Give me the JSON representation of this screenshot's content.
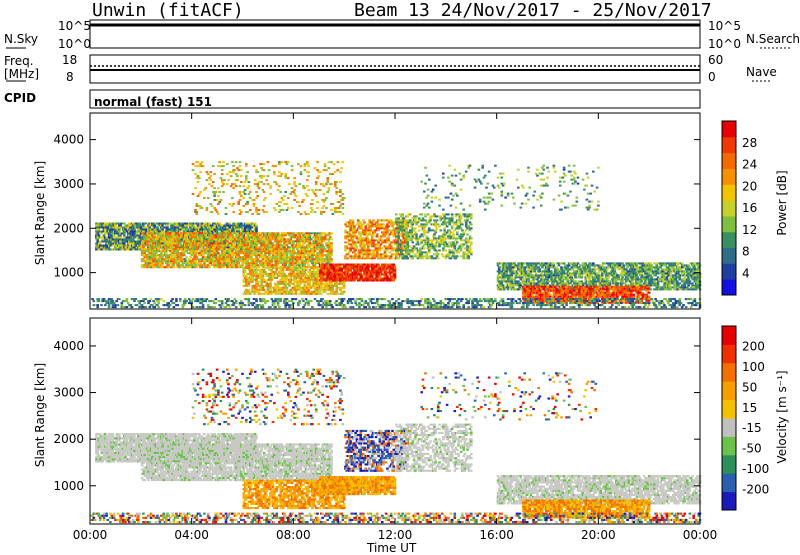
{
  "header": {
    "station": "Unwin (fitACF)",
    "beam_info": "Beam 13  24/Nov/2017 - 25/Nov/2017"
  },
  "aux_panels": {
    "nsky_label": "N.Sky",
    "nsky_ticks": [
      "10^5",
      "10^0"
    ],
    "nsearch_label": "N.Search",
    "nsearch_ticks": [
      "10^5",
      "10^0"
    ],
    "freq_label": "Freq.",
    "freq_unit": "[MHz]",
    "freq_ticks": [
      "18",
      "8"
    ],
    "nave_label": "Nave",
    "nave_ticks": [
      "60",
      "0"
    ],
    "cpid_label": "CPID",
    "cpid_value": "normal (fast) 151"
  },
  "chart_data": [
    {
      "type": "heatmap",
      "name": "power",
      "ylabel": "Slant Range [km]",
      "ylim": [
        180,
        4600
      ],
      "yticks": [
        "4000",
        "3000",
        "2000",
        "1000"
      ],
      "ytick_values": [
        4000,
        3000,
        2000,
        1000
      ],
      "colorbar": {
        "label": "Power [dB]",
        "ticks": [
          "28",
          "24",
          "20",
          "16",
          "12",
          "8",
          "4"
        ],
        "colors": [
          "#1010e0",
          "#1f3fa0",
          "#2d6d8a",
          "#3a8f5f",
          "#7fbf3f",
          "#c8d02c",
          "#f5c400",
          "#f59000",
          "#f26a00",
          "#ee3a00",
          "#e60000"
        ]
      }
    },
    {
      "type": "heatmap",
      "name": "velocity",
      "ylabel": "Slant Range [km]",
      "ylim": [
        180,
        4600
      ],
      "yticks": [
        "4000",
        "3000",
        "2000",
        "1000"
      ],
      "ytick_values": [
        4000,
        3000,
        2000,
        1000
      ],
      "xlabel": "Time UT",
      "xticks": [
        "00:00",
        "04:00",
        "08:00",
        "12:00",
        "16:00",
        "20:00",
        "00:00"
      ],
      "colorbar": {
        "label": "Velocity [m s⁻¹]",
        "ticks": [
          "200",
          "100",
          "50",
          "15",
          "-15",
          "-50",
          "-100",
          "-200"
        ],
        "colors": [
          "#1a1ab8",
          "#2a5fb0",
          "#2f8f5a",
          "#6cc24a",
          "#c0c0c0",
          "#f5c000",
          "#f5a000",
          "#f27000",
          "#ee3000",
          "#e60000"
        ]
      }
    }
  ]
}
